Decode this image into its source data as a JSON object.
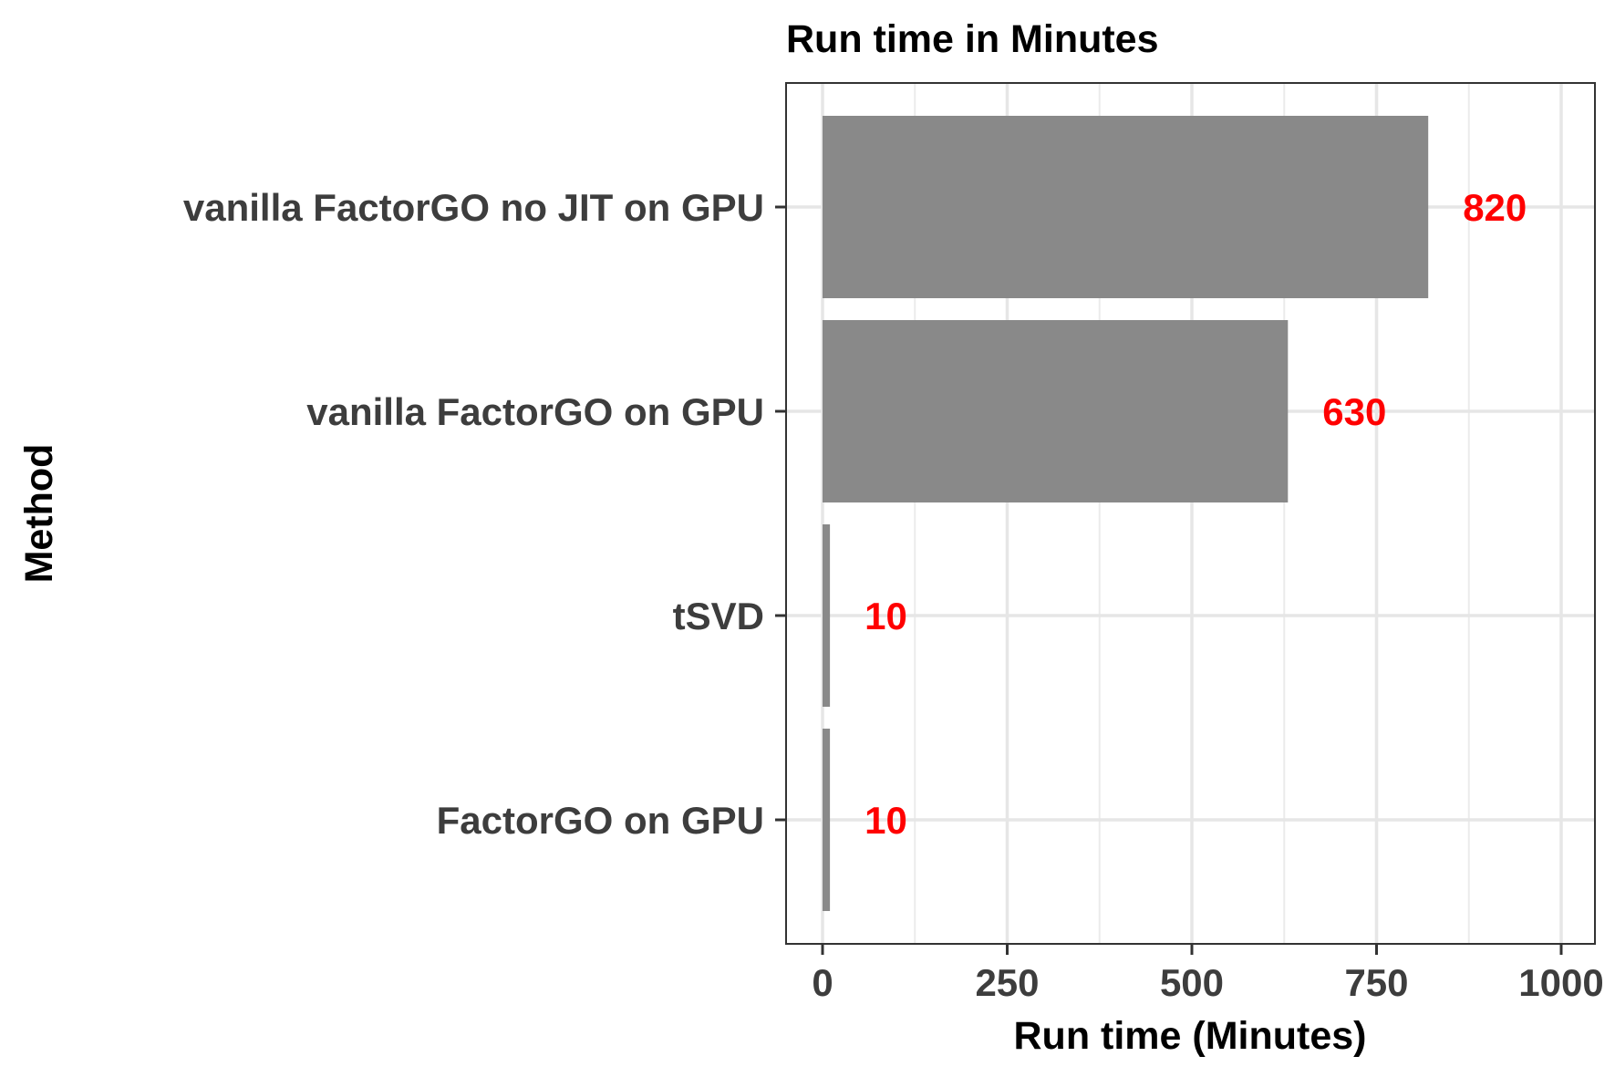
{
  "chart_data": {
    "type": "bar",
    "orientation": "horizontal",
    "title": "Run time in Minutes",
    "xlabel": "Run time (Minutes)",
    "ylabel": "Method",
    "categories": [
      "vanilla FactorGO no JIT on GPU",
      "vanilla FactorGO on GPU",
      "tSVD",
      "FactorGO on GPU"
    ],
    "values": [
      820,
      630,
      10,
      10
    ],
    "data_labels": [
      "820",
      "630",
      "10",
      "10"
    ],
    "xlim": [
      0,
      1000
    ],
    "xticks": [
      0,
      250,
      500,
      750,
      1000
    ],
    "xtick_labels": [
      "0",
      "250",
      "500",
      "750",
      "1000"
    ],
    "grid": true,
    "legend": "none",
    "bar_color": "#898989",
    "label_color": "#ff0000"
  }
}
